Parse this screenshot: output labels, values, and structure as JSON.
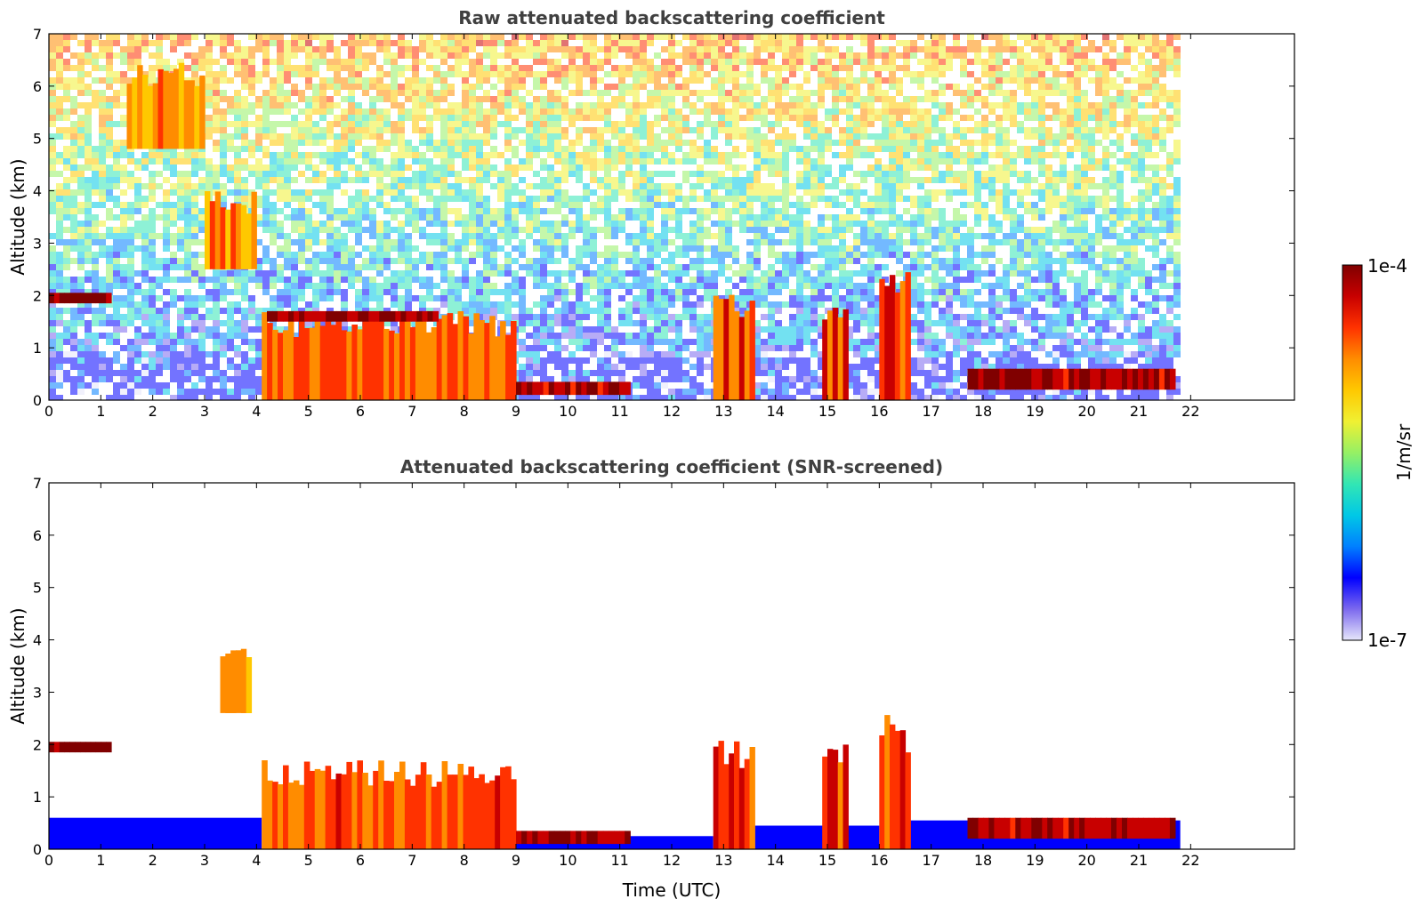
{
  "figure": {
    "colormap": [
      "#e6e6fa",
      "#7b68ee",
      "#0000ff",
      "#0080ff",
      "#00c8e6",
      "#32e6b4",
      "#96f064",
      "#f0f032",
      "#ffc800",
      "#ff8c00",
      "#ff3200",
      "#c80000",
      "#800000"
    ],
    "xlabel": "Time (UTC)"
  },
  "chart_data": [
    {
      "type": "heatmap",
      "title": "Raw attenuated backscattering coefficient",
      "xlabel": "",
      "ylabel": "Altitude (km)",
      "x_ticks": [
        "0",
        "1",
        "2",
        "3",
        "4",
        "5",
        "6",
        "7",
        "8",
        "9",
        "10",
        "11",
        "12",
        "13",
        "14",
        "15",
        "16",
        "17",
        "18",
        "19",
        "20",
        "21",
        "22"
      ],
      "y_ticks": [
        "0",
        "1",
        "2",
        "3",
        "4",
        "5",
        "6",
        "7"
      ],
      "xlim": [
        0,
        24
      ],
      "ylim": [
        0,
        7
      ],
      "data_time_range": [
        0,
        21.8
      ],
      "layers": [
        {
          "kind": "cloud",
          "x": [
            0,
            1.2
          ],
          "y": [
            1.85,
            2.05
          ],
          "level": 1.0
        },
        {
          "kind": "aerosol_plume",
          "x": [
            1.5,
            3.0
          ],
          "y": [
            4.8,
            6.5
          ],
          "level": 0.75
        },
        {
          "kind": "aerosol_plume",
          "x": [
            3.0,
            4.0
          ],
          "y": [
            2.5,
            4.0
          ],
          "level": 0.75
        },
        {
          "kind": "boundary_layer",
          "x": [
            4.1,
            9.0
          ],
          "y": [
            0.0,
            1.7
          ],
          "level": 0.8
        },
        {
          "kind": "cloud",
          "x": [
            4.2,
            7.5
          ],
          "y": [
            1.5,
            1.7
          ],
          "level": 0.98
        },
        {
          "kind": "cloud",
          "x": [
            9.0,
            11.2
          ],
          "y": [
            0.1,
            0.35
          ],
          "level": 0.95
        },
        {
          "kind": "convective_plume",
          "x": [
            12.8,
            13.6
          ],
          "y": [
            0.0,
            2.1
          ],
          "level": 0.85
        },
        {
          "kind": "convective_plume",
          "x": [
            14.9,
            15.4
          ],
          "y": [
            0.0,
            2.1
          ],
          "level": 0.85
        },
        {
          "kind": "convective_plume",
          "x": [
            16.0,
            16.6
          ],
          "y": [
            0.0,
            2.6
          ],
          "level": 0.85
        },
        {
          "kind": "cloud",
          "x": [
            17.7,
            21.7
          ],
          "y": [
            0.2,
            0.6
          ],
          "level": 0.95
        }
      ]
    },
    {
      "type": "heatmap",
      "title": "Attenuated backscattering coefficient (SNR-screened)",
      "xlabel": "Time (UTC)",
      "ylabel": "Altitude (km)",
      "x_ticks": [
        "0",
        "1",
        "2",
        "3",
        "4",
        "5",
        "6",
        "7",
        "8",
        "9",
        "10",
        "11",
        "12",
        "13",
        "14",
        "15",
        "16",
        "17",
        "18",
        "19",
        "20",
        "21",
        "22"
      ],
      "y_ticks": [
        "0",
        "1",
        "2",
        "3",
        "4",
        "5",
        "6",
        "7"
      ],
      "xlim": [
        0,
        24
      ],
      "ylim": [
        0,
        7
      ],
      "data_time_range": [
        0,
        21.8
      ],
      "layers": [
        {
          "kind": "cloud",
          "x": [
            0,
            1.2
          ],
          "y": [
            1.85,
            2.05
          ],
          "level": 1.0
        },
        {
          "kind": "aerosol_plume",
          "x": [
            3.3,
            3.9
          ],
          "y": [
            2.6,
            3.9
          ],
          "level": 0.7
        },
        {
          "kind": "boundary_layer",
          "x": [
            4.1,
            9.0
          ],
          "y": [
            0.0,
            1.7
          ],
          "level": 0.8
        },
        {
          "kind": "cloud",
          "x": [
            9.0,
            11.2
          ],
          "y": [
            0.1,
            0.35
          ],
          "level": 0.95
        },
        {
          "kind": "convective_plume",
          "x": [
            12.8,
            13.6
          ],
          "y": [
            0.0,
            2.1
          ],
          "level": 0.85
        },
        {
          "kind": "convective_plume",
          "x": [
            14.9,
            15.4
          ],
          "y": [
            0.0,
            2.1
          ],
          "level": 0.85
        },
        {
          "kind": "convective_plume",
          "x": [
            16.0,
            16.6
          ],
          "y": [
            0.0,
            2.6
          ],
          "level": 0.85
        },
        {
          "kind": "cloud",
          "x": [
            17.7,
            21.7
          ],
          "y": [
            0.2,
            0.6
          ],
          "level": 0.95
        }
      ]
    }
  ],
  "colorbar": {
    "label": "1/m/sr",
    "max_label": "1e-4",
    "min_label": "1e-7",
    "range": [
      "1e-7",
      "1e-4"
    ],
    "scale": "log"
  }
}
